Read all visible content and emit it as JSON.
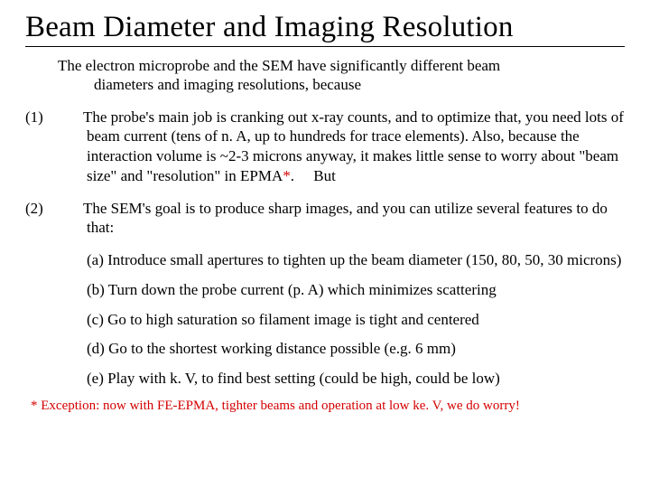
{
  "title": "Beam Diameter and Imaging Resolution",
  "intro_line1": "The electron microprobe and the SEM have significantly different beam",
  "intro_line2": "diameters and imaging resolutions, because",
  "item1_label": "(1)",
  "item1_a": "The probe's main job is cranking out x-ray counts, and to optimize that, you need lots of beam current (tens of n. A, up to hundreds for trace elements). Also, because the interaction volume is ~2-3 microns anyway, it makes little sense to worry about \"beam size\" and \"resolution\" in EPMA",
  "item1_star": "*",
  "item1_b": ".  But",
  "item2_label": "(2)",
  "item2_text": "The SEM's goal is to produce sharp images, and you can utilize several features to do that:",
  "sub_a": "(a) Introduce small apertures to tighten up the beam diameter (150, 80, 50, 30 microns)",
  "sub_b": "(b) Turn down the probe current (p. A) which minimizes scattering",
  "sub_c": "(c) Go to high saturation so filament image is tight and centered",
  "sub_d": "(d) Go to the shortest working distance possible (e.g. 6 mm)",
  "sub_e": "(e) Play with k. V, to find best setting (could be high, could be low)",
  "footnote": "* Exception: now with FE-EPMA, tighter beams and operation at low ke. V, we do worry!",
  "colors": {
    "footnote": "#d40000",
    "text": "#000000",
    "bg": "#ffffff"
  },
  "fontsizes": {
    "title": 33,
    "body": 17,
    "footnote": 15
  }
}
